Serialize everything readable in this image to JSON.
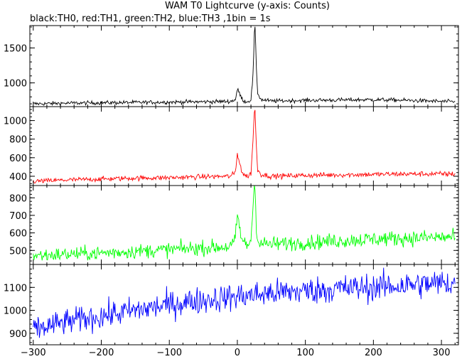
{
  "chart_data": {
    "type": "line",
    "title": "WAM T0 Lightcurve (y-axis: Counts)",
    "subtitle": "black:TH0, red:TH1, green:TH2, blue:TH3 ,1bin = 1s",
    "xlabel": "",
    "xlim": [
      -305,
      325
    ],
    "x_ticks": [
      -300,
      -200,
      -100,
      0,
      100,
      200,
      300
    ],
    "bin_seconds": 1,
    "grid": false,
    "panels": [
      {
        "name": "TH0",
        "color": "#000000",
        "ylim": [
          660,
          1820
        ],
        "y_ticks": [
          1000,
          1500
        ],
        "x": [
          -300,
          -250,
          -200,
          -150,
          -100,
          -50,
          -10,
          -3,
          0,
          3,
          6,
          10,
          15,
          20,
          23,
          25,
          26,
          28,
          30,
          35,
          50,
          100,
          150,
          200,
          250,
          300,
          320
        ],
        "values": [
          700,
          710,
          715,
          720,
          725,
          730,
          735,
          760,
          900,
          860,
          780,
          740,
          730,
          760,
          1100,
          1700,
          1780,
          1200,
          850,
          760,
          740,
          750,
          755,
          760,
          750,
          735,
          730
        ],
        "noise": 14
      },
      {
        "name": "TH1",
        "color": "#ff0000",
        "ylim": [
          300,
          1150
        ],
        "y_ticks": [
          400,
          600,
          800,
          1000
        ],
        "x": [
          -300,
          -250,
          -200,
          -150,
          -100,
          -50,
          -10,
          -3,
          0,
          3,
          6,
          10,
          15,
          20,
          23,
          25,
          26,
          28,
          30,
          35,
          50,
          100,
          150,
          200,
          250,
          300,
          320
        ],
        "values": [
          345,
          360,
          370,
          380,
          385,
          395,
          400,
          440,
          640,
          570,
          460,
          410,
          400,
          430,
          800,
          1080,
          1110,
          700,
          470,
          420,
          400,
          410,
          415,
          420,
          425,
          425,
          425
        ],
        "noise": 13
      },
      {
        "name": "TH2",
        "color": "#00ff00",
        "ylim": [
          420,
          870
        ],
        "y_ticks": [
          500,
          600,
          700,
          800
        ],
        "x": [
          -300,
          -250,
          -200,
          -150,
          -100,
          -50,
          -10,
          -3,
          0,
          3,
          6,
          10,
          15,
          20,
          23,
          25,
          26,
          28,
          30,
          35,
          50,
          100,
          150,
          200,
          250,
          300,
          320
        ],
        "values": [
          470,
          478,
          485,
          495,
          505,
          515,
          522,
          560,
          700,
          640,
          570,
          540,
          530,
          560,
          760,
          860,
          860,
          650,
          555,
          540,
          535,
          545,
          555,
          565,
          570,
          575,
          575
        ],
        "noise": 20
      },
      {
        "name": "TH3",
        "color": "#0000ff",
        "ylim": [
          850,
          1200
        ],
        "y_ticks": [
          900,
          1000,
          1100
        ],
        "x": [
          -300,
          -250,
          -200,
          -150,
          -100,
          -50,
          0,
          50,
          100,
          150,
          200,
          250,
          300,
          320
        ],
        "values": [
          915,
          950,
          975,
          1000,
          1025,
          1045,
          1060,
          1075,
          1085,
          1095,
          1100,
          1110,
          1118,
          1120
        ],
        "noise": 28
      }
    ]
  }
}
